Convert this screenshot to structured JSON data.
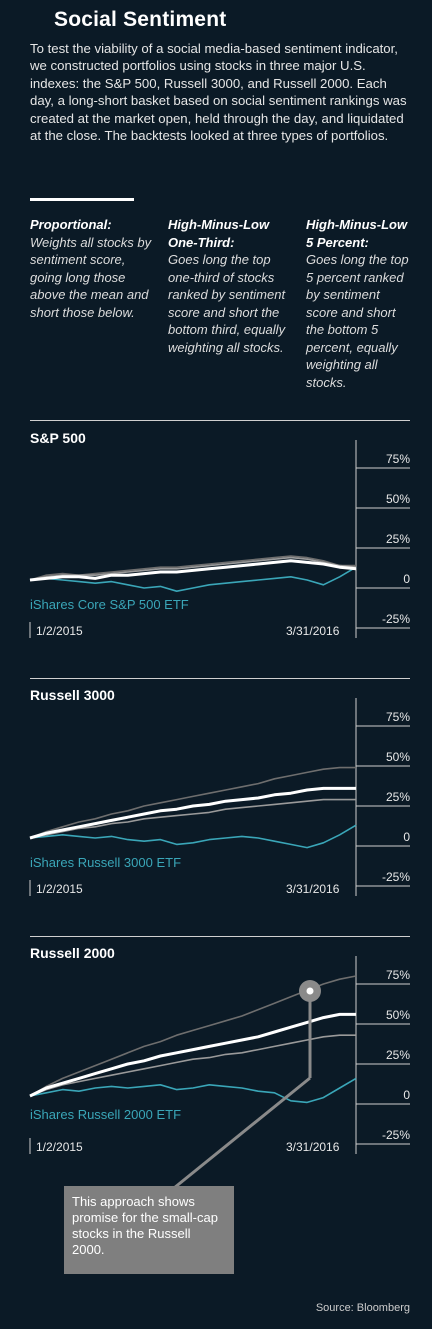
{
  "header": {
    "title": "Social Sentiment",
    "intro": "To test the viability of a social media-based sentiment indicator, we constructed portfolios using stocks in three major U.S. indexes: the S&P 500, Russell 3000, and Russell 2000. Each day, a long-short basket based on social sentiment rankings was created at the market open, held through the day, and liquidated at the close. The backtests looked at three types of portfolios."
  },
  "portfolios": [
    {
      "head": "Proportional:",
      "body": "Weights all stocks by sentiment score, going long those above the mean and short those below."
    },
    {
      "head": "High-Minus-Low One-Third:",
      "body": "Goes long the top one-third of stocks ranked by sentiment score and short the bottom third, equally weighting all stocks."
    },
    {
      "head": "High-Minus-Low 5 Percent:",
      "body": "Goes long the top 5 percent ranked by sentiment score and short the bottom 5 percent, equally weighting all stocks."
    }
  ],
  "colors": {
    "background": "#0b1a26",
    "etf": "#3aa6b8",
    "proportional": "#ffffff",
    "one_third": "#9a9a9a",
    "five_percent": "#6e6e6e"
  },
  "chart_data": [
    {
      "type": "line",
      "title": "S&P 500",
      "x_start_label": "1/2/2015",
      "x_end_label": "3/31/2016",
      "y_ticks": [
        "75%",
        "50%",
        "25%",
        "0",
        "-25%"
      ],
      "ylim": [
        -25,
        75
      ],
      "etf_label": "iShares Core S&P 500 ETF",
      "series": [
        {
          "name": "Proportional",
          "values": [
            0,
            1,
            2,
            2,
            1,
            3,
            3,
            4,
            5,
            5,
            6,
            7,
            8,
            9,
            10,
            11,
            12,
            11,
            10,
            8,
            7
          ]
        },
        {
          "name": "High-Minus-Low One-Third",
          "values": [
            0,
            2,
            3,
            3,
            3,
            4,
            5,
            6,
            7,
            7,
            8,
            9,
            10,
            11,
            12,
            13,
            14,
            13,
            11,
            9,
            8
          ]
        },
        {
          "name": "High-Minus-Low 5 Percent",
          "values": [
            0,
            3,
            4,
            3,
            4,
            5,
            6,
            7,
            8,
            8,
            9,
            10,
            11,
            12,
            13,
            14,
            15,
            14,
            12,
            9,
            9
          ]
        },
        {
          "name": "iShares Core S&P 500 ETF",
          "values": [
            0,
            1,
            0,
            -1,
            -2,
            -1,
            -3,
            -5,
            -4,
            -7,
            -5,
            -3,
            -2,
            -1,
            0,
            1,
            2,
            0,
            -3,
            2,
            8
          ]
        }
      ]
    },
    {
      "type": "line",
      "title": "Russell 3000",
      "x_start_label": "1/2/2015",
      "x_end_label": "3/31/2016",
      "y_ticks": [
        "75%",
        "50%",
        "25%",
        "0",
        "-25%"
      ],
      "ylim": [
        -25,
        75
      ],
      "etf_label": "iShares Russell 3000 ETF",
      "series": [
        {
          "name": "Proportional",
          "values": [
            0,
            3,
            5,
            7,
            9,
            11,
            13,
            15,
            17,
            18,
            20,
            21,
            23,
            24,
            25,
            27,
            28,
            30,
            31,
            31,
            31
          ]
        },
        {
          "name": "High-Minus-Low One-Third",
          "values": [
            0,
            2,
            4,
            6,
            7,
            9,
            10,
            12,
            13,
            14,
            15,
            16,
            18,
            19,
            20,
            21,
            22,
            23,
            24,
            24,
            24
          ]
        },
        {
          "name": "High-Minus-Low 5 Percent",
          "values": [
            0,
            4,
            7,
            10,
            12,
            15,
            17,
            20,
            22,
            24,
            26,
            28,
            30,
            32,
            34,
            37,
            39,
            41,
            43,
            44,
            44
          ]
        },
        {
          "name": "iShares Russell 3000 ETF",
          "values": [
            0,
            1,
            2,
            1,
            0,
            1,
            -1,
            -2,
            -1,
            -4,
            -3,
            -1,
            0,
            1,
            0,
            -2,
            -4,
            -6,
            -3,
            2,
            8
          ]
        }
      ]
    },
    {
      "type": "line",
      "title": "Russell 2000",
      "x_start_label": "1/2/2015",
      "x_end_label": "3/31/2016",
      "y_ticks": [
        "75%",
        "50%",
        "25%",
        "0",
        "-25%"
      ],
      "ylim": [
        -25,
        75
      ],
      "etf_label": "iShares Russell 2000 ETF",
      "series": [
        {
          "name": "Proportional",
          "values": [
            0,
            5,
            8,
            11,
            14,
            17,
            20,
            22,
            25,
            27,
            29,
            31,
            33,
            35,
            37,
            40,
            43,
            46,
            49,
            51,
            51
          ]
        },
        {
          "name": "High-Minus-Low One-Third",
          "values": [
            0,
            4,
            7,
            9,
            11,
            13,
            15,
            17,
            19,
            21,
            23,
            24,
            26,
            27,
            29,
            31,
            33,
            35,
            37,
            38,
            38
          ]
        },
        {
          "name": "High-Minus-Low 5 Percent",
          "values": [
            0,
            6,
            11,
            15,
            19,
            23,
            27,
            31,
            34,
            38,
            41,
            44,
            47,
            50,
            54,
            58,
            62,
            66,
            70,
            73,
            75
          ]
        },
        {
          "name": "iShares Russell 2000 ETF",
          "values": [
            0,
            2,
            4,
            3,
            5,
            6,
            5,
            6,
            7,
            4,
            5,
            7,
            6,
            5,
            3,
            2,
            -3,
            -4,
            -1,
            5,
            11
          ]
        }
      ]
    }
  ],
  "annotation": "This approach shows promise for the small-cap stocks in the Russell 2000.",
  "source": "Source: Bloomberg"
}
